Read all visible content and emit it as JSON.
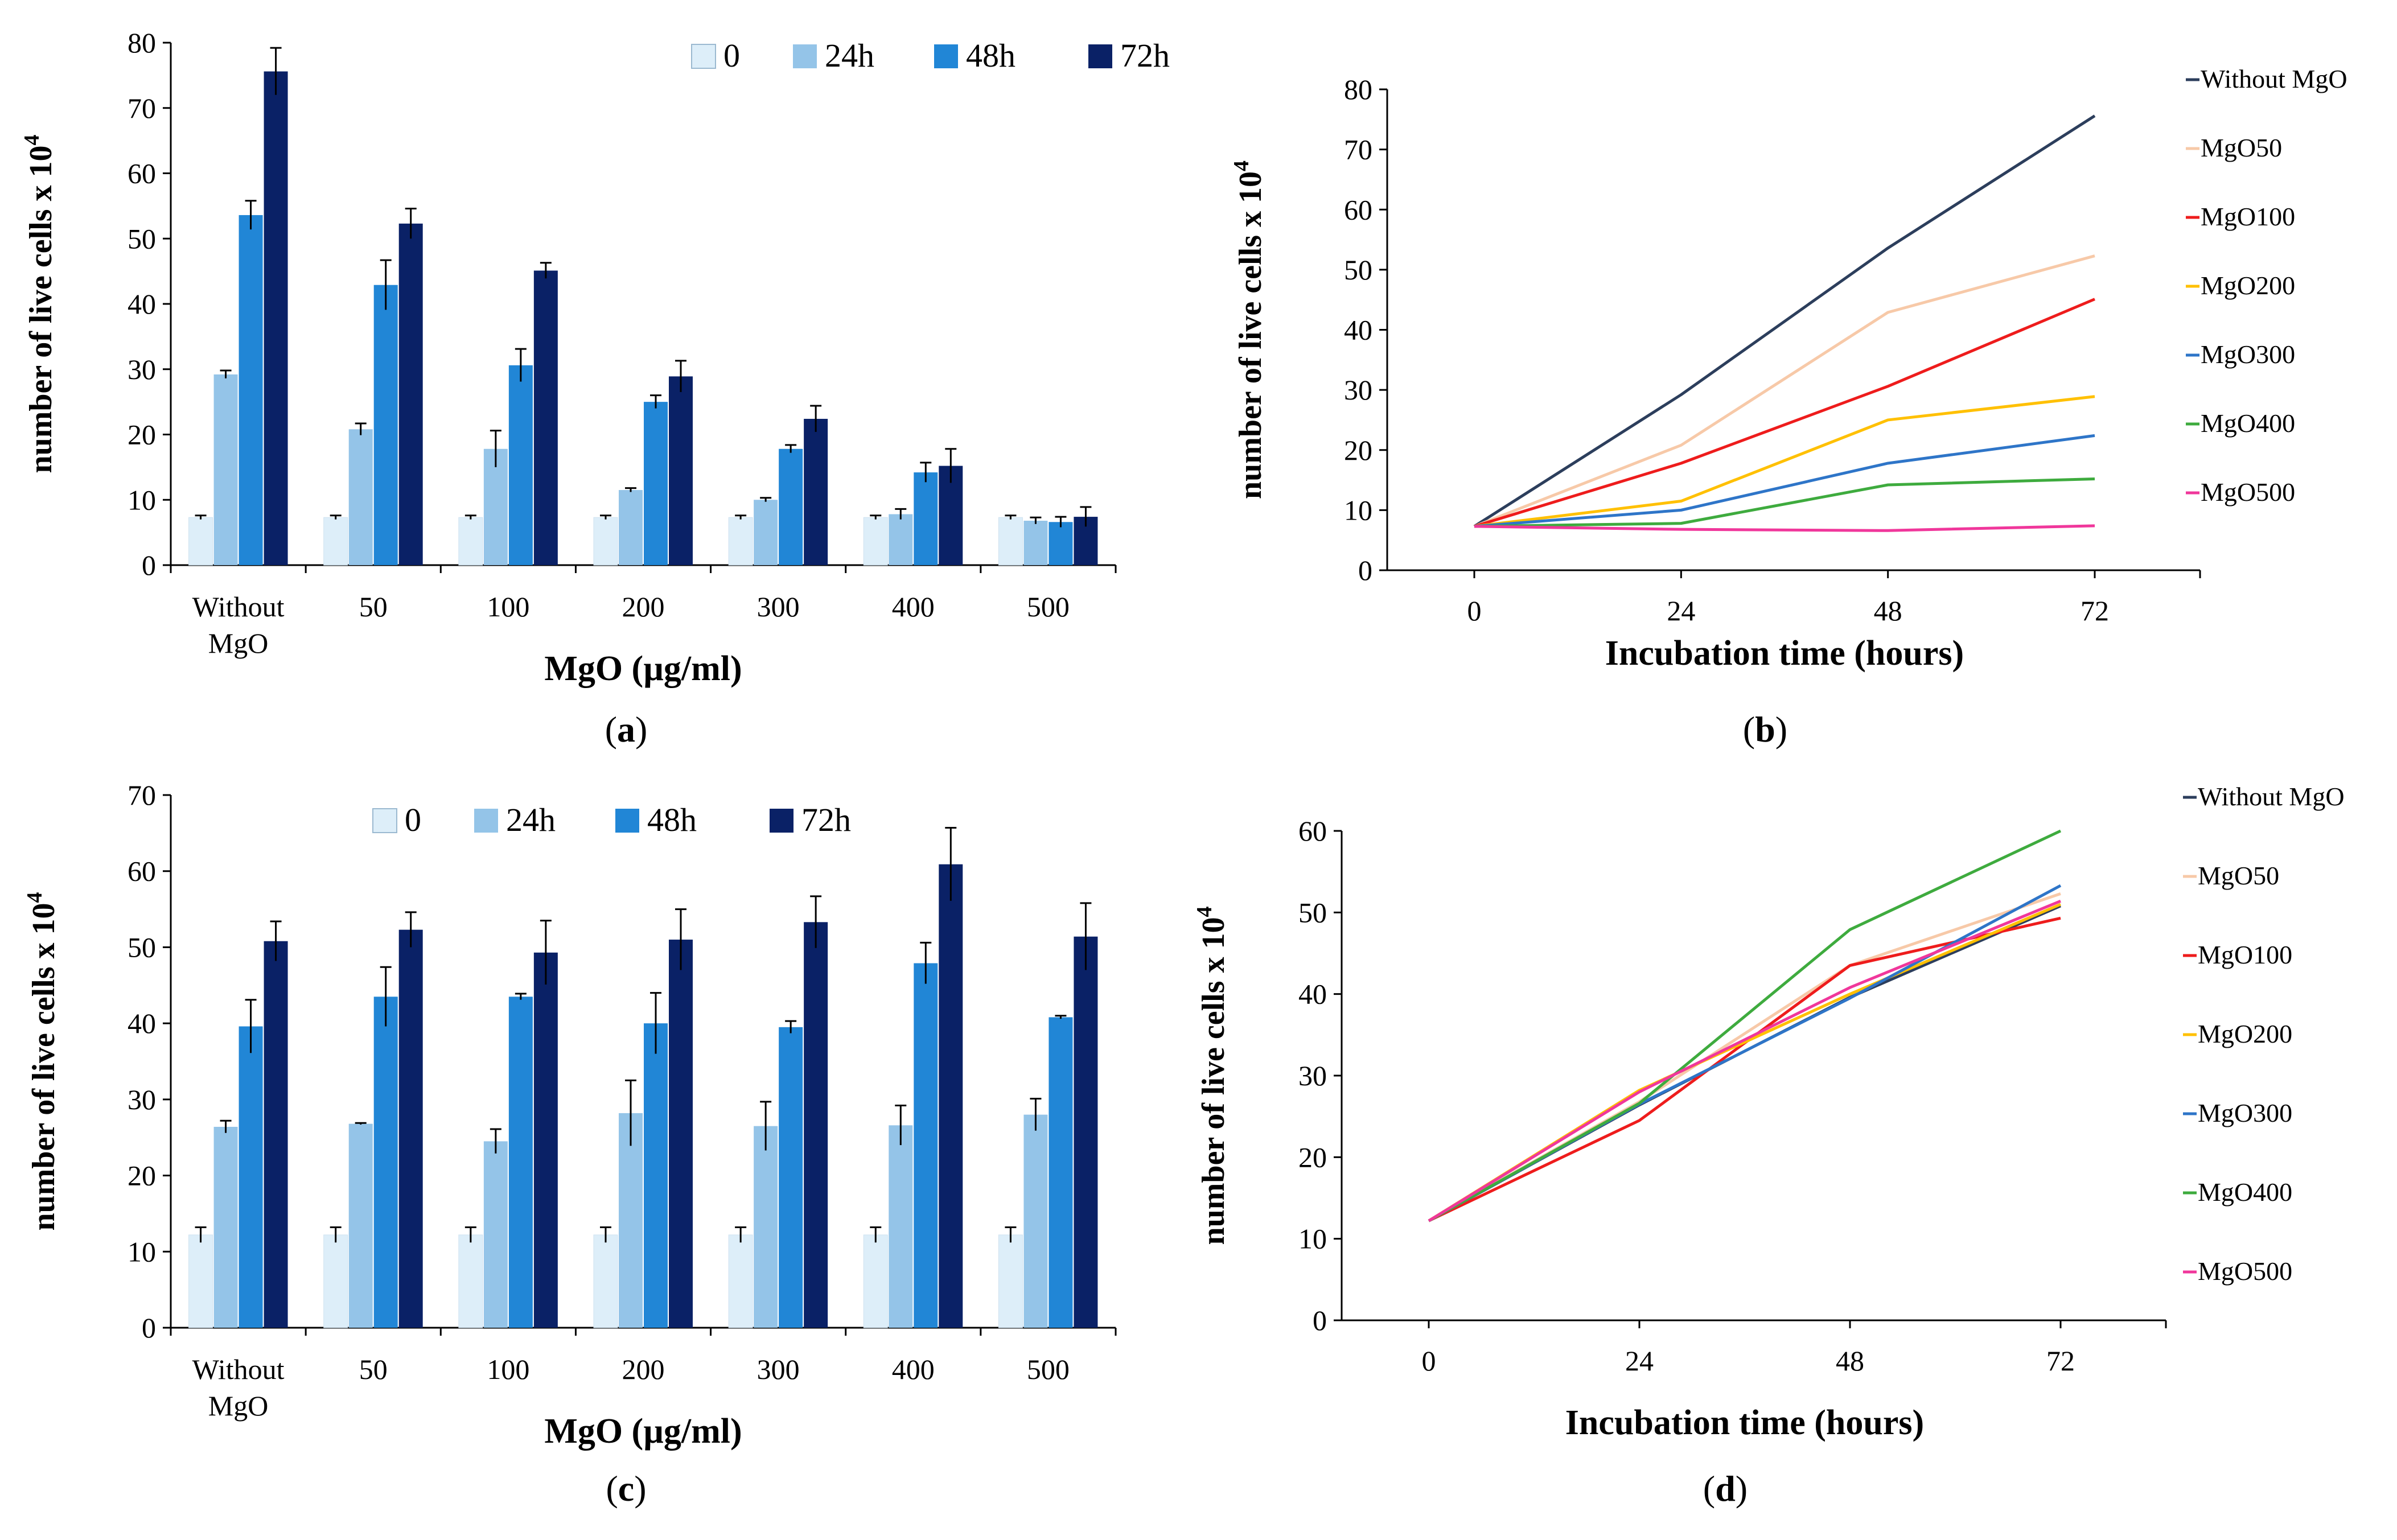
{
  "chart_data": [
    {
      "id": "a",
      "type": "bar",
      "panel_label": "a",
      "xlabel": "MgO (µg/ml)",
      "ylabel": "number of live cells x 10",
      "ylabel_sup": "4",
      "ylim": [
        0,
        80
      ],
      "ystep": 10,
      "categories": [
        "Without\nMgO",
        "50",
        "100",
        "200",
        "300",
        "400",
        "500"
      ],
      "series": [
        {
          "name": "0",
          "color": "#ddeef9",
          "values": [
            7.3,
            7.3,
            7.3,
            7.3,
            7.3,
            7.3,
            7.3
          ],
          "errors": [
            0.3,
            0.3,
            0.3,
            0.3,
            0.3,
            0.3,
            0.3
          ]
        },
        {
          "name": "24h",
          "color": "#94c4e8",
          "values": [
            29.2,
            20.8,
            17.8,
            11.5,
            10.0,
            7.8,
            6.8
          ],
          "errors": [
            0.6,
            0.9,
            2.8,
            0.3,
            0.3,
            0.8,
            0.5
          ]
        },
        {
          "name": "48h",
          "color": "#2186d6",
          "values": [
            53.6,
            42.9,
            30.6,
            25.0,
            17.8,
            14.2,
            6.6
          ],
          "errors": [
            2.2,
            3.8,
            2.5,
            1.0,
            0.6,
            1.5,
            0.8
          ]
        },
        {
          "name": "72h",
          "color": "#0a2166",
          "values": [
            75.6,
            52.3,
            45.1,
            28.9,
            22.4,
            15.2,
            7.4
          ],
          "errors": [
            3.6,
            2.3,
            1.2,
            2.4,
            2.0,
            2.6,
            1.5
          ]
        }
      ]
    },
    {
      "id": "b",
      "type": "line",
      "panel_label": "b",
      "xlabel": "Incubation time (hours)",
      "ylabel": "number of live cells x 10",
      "ylabel_sup": "4",
      "ylim": [
        0,
        80
      ],
      "ystep": 10,
      "x": [
        0,
        24,
        48,
        72
      ],
      "series": [
        {
          "name": "Without MgO",
          "color": "#2c3e5c",
          "values": [
            7.3,
            29.2,
            53.6,
            75.6
          ]
        },
        {
          "name": "MgO50",
          "color": "#f7c9a8",
          "values": [
            7.3,
            20.8,
            42.9,
            52.3
          ]
        },
        {
          "name": "MgO100",
          "color": "#ee1c1c",
          "values": [
            7.3,
            17.8,
            30.6,
            45.1
          ]
        },
        {
          "name": "MgO200",
          "color": "#ffc000",
          "values": [
            7.3,
            11.5,
            25.0,
            28.9
          ]
        },
        {
          "name": "MgO300",
          "color": "#2e75c8",
          "values": [
            7.3,
            10.0,
            17.8,
            22.4
          ]
        },
        {
          "name": "MgO400",
          "color": "#3eab3e",
          "values": [
            7.3,
            7.8,
            14.2,
            15.2
          ]
        },
        {
          "name": "MgO500",
          "color": "#f0379b",
          "values": [
            7.3,
            6.8,
            6.6,
            7.4
          ]
        }
      ]
    },
    {
      "id": "c",
      "type": "bar",
      "panel_label": "c",
      "xlabel": "MgO (µg/ml)",
      "ylabel": "number of live cells x 10",
      "ylabel_sup": "4",
      "ylim": [
        0,
        70
      ],
      "ystep": 10,
      "categories": [
        "Without\nMgO",
        "50",
        "100",
        "200",
        "300",
        "400",
        "500"
      ],
      "series": [
        {
          "name": "0",
          "color": "#ddeef9",
          "values": [
            12.2,
            12.2,
            12.2,
            12.2,
            12.2,
            12.2,
            12.2
          ],
          "errors": [
            1.0,
            1.0,
            1.0,
            1.0,
            1.0,
            1.0,
            1.0
          ]
        },
        {
          "name": "24h",
          "color": "#94c4e8",
          "values": [
            26.4,
            26.8,
            24.5,
            28.2,
            26.5,
            26.6,
            28.0
          ],
          "errors": [
            0.8,
            0.1,
            1.6,
            4.3,
            3.2,
            2.6,
            2.1
          ]
        },
        {
          "name": "48h",
          "color": "#2186d6",
          "values": [
            39.6,
            43.5,
            43.5,
            40.0,
            39.5,
            47.9,
            40.8
          ],
          "errors": [
            3.5,
            3.9,
            0.4,
            4.0,
            0.8,
            2.7,
            0.2
          ]
        },
        {
          "name": "72h",
          "color": "#0a2166",
          "values": [
            50.8,
            52.3,
            49.3,
            51.0,
            53.3,
            60.9,
            51.4
          ],
          "errors": [
            2.6,
            2.3,
            4.2,
            4.0,
            3.4,
            4.8,
            4.4
          ]
        }
      ]
    },
    {
      "id": "d",
      "type": "line",
      "panel_label": "d",
      "xlabel": "Incubation time (hours)",
      "ylabel": "number of live cells x 10",
      "ylabel_sup": "4",
      "ylim": [
        0,
        60
      ],
      "ystep": 10,
      "x": [
        0,
        24,
        48,
        72
      ],
      "series": [
        {
          "name": "Without MgO",
          "color": "#2c3e5c",
          "values": [
            12.2,
            26.4,
            39.6,
            50.8
          ]
        },
        {
          "name": "MgO50",
          "color": "#f7c9a8",
          "values": [
            12.2,
            26.8,
            43.5,
            52.3
          ]
        },
        {
          "name": "MgO100",
          "color": "#ee1c1c",
          "values": [
            12.2,
            24.5,
            43.5,
            49.3
          ]
        },
        {
          "name": "MgO200",
          "color": "#ffc000",
          "values": [
            12.2,
            28.2,
            40.0,
            51.0
          ]
        },
        {
          "name": "MgO300",
          "color": "#2e75c8",
          "values": [
            12.2,
            26.5,
            39.5,
            53.3
          ]
        },
        {
          "name": "MgO400",
          "color": "#3eab3e",
          "values": [
            12.2,
            26.6,
            47.9,
            60.9
          ]
        },
        {
          "name": "MgO500",
          "color": "#f0379b",
          "values": [
            12.2,
            28.0,
            40.8,
            51.4
          ]
        }
      ]
    }
  ]
}
